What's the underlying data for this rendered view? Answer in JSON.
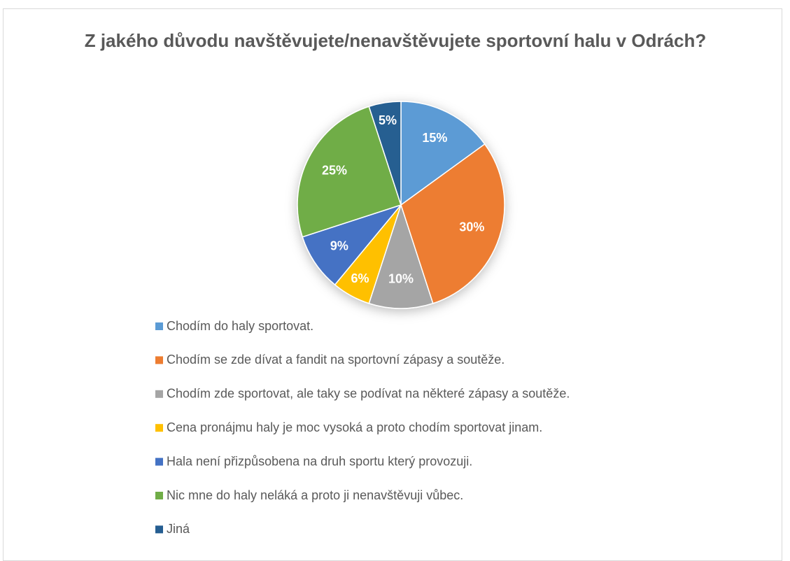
{
  "chart_data": {
    "type": "pie",
    "title": "Z jakého důvodu navštěvujete/nenavštěvujete sportovní halu v Odrách?",
    "categories": [
      "Chodím do haly sportovat.",
      "Chodím se zde dívat a fandit na sportovní zápasy a soutěže.",
      "Chodím zde sportovat, ale taky se podívat na některé zápasy a soutěže.",
      "Cena pronájmu haly je moc vysoká a proto chodím sportovat jinam.",
      "Hala není přizpůsobena na druh sportu který provozuji.",
      "Nic mne do haly neláká a proto ji nenavštěvuji vůbec.",
      "Jiná"
    ],
    "values": [
      15,
      30,
      10,
      6,
      9,
      25,
      5
    ],
    "value_labels": [
      "15%",
      "30%",
      "10%",
      "6%",
      "9%",
      "25%",
      "5%"
    ],
    "colors": [
      "#5b9bd5",
      "#ed7d31",
      "#a5a5a5",
      "#ffc000",
      "#4472c4",
      "#70ad47",
      "#255e91"
    ]
  }
}
